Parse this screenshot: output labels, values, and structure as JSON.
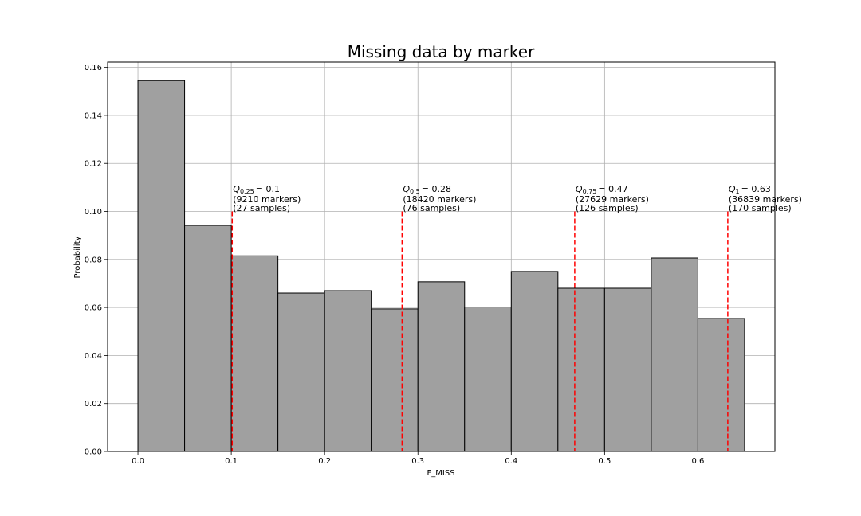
{
  "chart_data": {
    "type": "bar",
    "title": "Missing data by marker",
    "xlabel": "F_MISS",
    "ylabel": "Probability",
    "xlim": [
      -0.0325,
      0.6825
    ],
    "ylim": [
      0,
      0.1622
    ],
    "grid": true,
    "xticks": [
      "0.0",
      "0.1",
      "0.2",
      "0.3",
      "0.4",
      "0.5",
      "0.6"
    ],
    "yticks": [
      "0.00",
      "0.02",
      "0.04",
      "0.06",
      "0.08",
      "0.10",
      "0.12",
      "0.14",
      "0.16"
    ],
    "bin_edges": [
      0.0,
      0.05,
      0.1,
      0.15,
      0.2,
      0.25,
      0.3,
      0.35,
      0.4,
      0.45,
      0.5,
      0.55,
      0.6,
      0.65
    ],
    "values": [
      0.1545,
      0.0942,
      0.0815,
      0.066,
      0.067,
      0.0594,
      0.0707,
      0.0602,
      0.075,
      0.068,
      0.068,
      0.0806,
      0.0554
    ],
    "bar_color": "#a0a0a0",
    "quantile_color": "#ff0000",
    "quantiles": [
      {
        "sub": "0.25",
        "value_text": "= 0.1",
        "x": 0.101,
        "markers": "(9210 markers)",
        "samples": "(27 samples)"
      },
      {
        "sub": "0.5",
        "value_text": "= 0.28",
        "x": 0.283,
        "markers": "(18420 markers)",
        "samples": "(76 samples)"
      },
      {
        "sub": "0.75",
        "value_text": "= 0.47",
        "x": 0.468,
        "markers": "(27629 markers)",
        "samples": "(126 samples)"
      },
      {
        "sub": "1",
        "value_text": "= 0.63",
        "x": 0.632,
        "markers": "(36839 markers)",
        "samples": "(170 samples)"
      }
    ],
    "quantile_line_top": 0.1
  }
}
